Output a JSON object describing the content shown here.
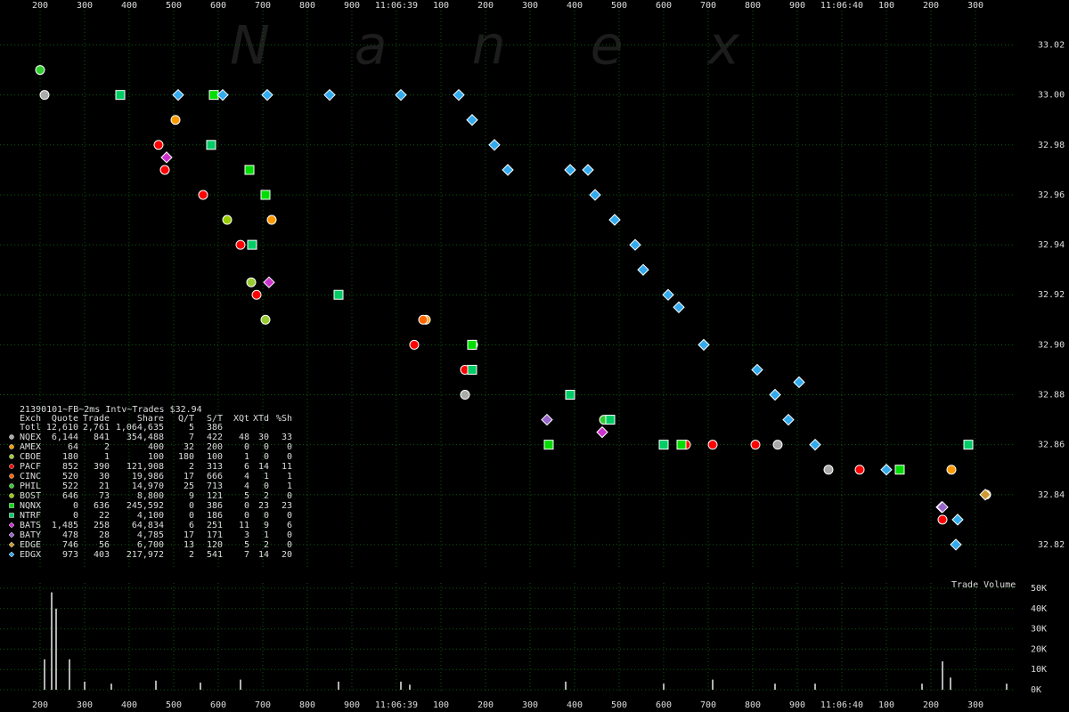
{
  "watermark": "Nanex",
  "table": {
    "title": "21390101~FB~2ms Intv~Trades $32.94",
    "columns": [
      "Exch",
      "Quote",
      "Trade",
      "Share",
      "Q/T",
      "S/T",
      "XQt",
      "XTd",
      "%Sh"
    ],
    "total": [
      "Totl",
      "12,610",
      "2,761",
      "1,064,635",
      "5",
      "386"
    ],
    "rows": [
      [
        "6,144",
        "841",
        "354,488",
        "7",
        "422",
        "48",
        "30",
        "33"
      ],
      [
        "64",
        "2",
        "400",
        "32",
        "200",
        "0",
        "0",
        "0"
      ],
      [
        "180",
        "1",
        "100",
        "180",
        "100",
        "1",
        "0",
        "0"
      ],
      [
        "852",
        "390",
        "121,908",
        "2",
        "313",
        "6",
        "14",
        "11"
      ],
      [
        "520",
        "30",
        "19,986",
        "17",
        "666",
        "4",
        "1",
        "1"
      ],
      [
        "522",
        "21",
        "14,970",
        "25",
        "713",
        "4",
        "0",
        "1"
      ],
      [
        "646",
        "73",
        "8,800",
        "9",
        "121",
        "5",
        "2",
        "0"
      ],
      [
        "0",
        "636",
        "245,592",
        "0",
        "386",
        "0",
        "23",
        "23"
      ],
      [
        "0",
        "22",
        "4,100",
        "0",
        "186",
        "0",
        "0",
        "0"
      ],
      [
        "1,485",
        "258",
        "64,834",
        "6",
        "251",
        "11",
        "9",
        "6"
      ],
      [
        "478",
        "28",
        "4,785",
        "17",
        "171",
        "3",
        "1",
        "0"
      ],
      [
        "746",
        "56",
        "6,700",
        "13",
        "120",
        "5",
        "2",
        "0"
      ],
      [
        "973",
        "403",
        "217,972",
        "2",
        "541",
        "7",
        "14",
        "20"
      ]
    ]
  },
  "chart_data": [
    {
      "type": "scatter",
      "grid": true,
      "xlim": [
        110,
        2510
      ],
      "ylim": [
        32.81,
        33.038
      ],
      "xticks": [
        200,
        300,
        400,
        500,
        600,
        700,
        800,
        900,
        {
          "value": 1000,
          "label": "11:06:39"
        },
        {
          "value": 1100,
          "label": "100"
        },
        {
          "value": 1200,
          "label": "200"
        },
        {
          "value": 1300,
          "label": "300"
        },
        {
          "value": 1400,
          "label": "400"
        },
        {
          "value": 1500,
          "label": "500"
        },
        {
          "value": 1600,
          "label": "600"
        },
        {
          "value": 1700,
          "label": "700"
        },
        {
          "value": 1800,
          "label": "800"
        },
        {
          "value": 1900,
          "label": "900"
        },
        {
          "value": 2000,
          "label": "11:06:40"
        },
        {
          "value": 2100,
          "label": "100"
        },
        {
          "value": 2200,
          "label": "200"
        },
        {
          "value": 2300,
          "label": "300"
        }
      ],
      "yticks": [
        33.02,
        {
          "value": 33,
          "label": "33.00"
        },
        32.98,
        32.96,
        32.94,
        32.92,
        {
          "value": 32.9,
          "label": "32.90"
        },
        32.88,
        32.86,
        32.84,
        32.82
      ],
      "series": [
        {
          "name": "NQEX",
          "color": "#aaaaaa",
          "shape": "circle",
          "x": [
            210,
            1154,
            1856,
            1970
          ],
          "values": [
            33.0,
            32.88,
            32.86,
            32.85
          ]
        },
        {
          "name": "AMEX",
          "color": "#ff9900",
          "shape": "circle",
          "x": [
            504,
            720,
            1066,
            2246,
            2324
          ],
          "values": [
            32.99,
            32.95,
            32.91,
            32.85,
            32.84
          ]
        },
        {
          "name": "CBOE",
          "color": "#99cc33",
          "shape": "circle",
          "x": [
            674,
            706
          ],
          "values": [
            32.925,
            32.91
          ]
        },
        {
          "name": "PACF",
          "color": "#ff0000",
          "shape": "circle",
          "x": [
            466,
            480,
            566,
            650,
            686,
            1040,
            1154,
            1650,
            1710,
            1806,
            2040,
            2226
          ],
          "values": [
            32.98,
            32.97,
            32.96,
            32.94,
            32.92,
            32.9,
            32.89,
            32.86,
            32.86,
            32.86,
            32.85,
            32.83
          ]
        },
        {
          "name": "CINC",
          "color": "#ff6600",
          "shape": "circle",
          "x": [
            1060
          ],
          "values": [
            32.91
          ]
        },
        {
          "name": "PHIL",
          "color": "#33cc33",
          "shape": "circle",
          "x": [
            200,
            1172,
            1466
          ],
          "values": [
            33.01,
            32.9,
            32.87
          ]
        },
        {
          "name": "BOST",
          "color": "#99cc00",
          "shape": "circle",
          "x": [
            620
          ],
          "values": [
            32.95
          ]
        },
        {
          "name": "NQNX",
          "color": "#00dd00",
          "shape": "square",
          "x": [
            590,
            670,
            706,
            1170,
            1342,
            1640,
            2130
          ],
          "values": [
            33.0,
            32.97,
            32.96,
            32.9,
            32.86,
            32.86,
            32.85
          ]
        },
        {
          "name": "NTRF",
          "color": "#00cc66",
          "shape": "square",
          "x": [
            380,
            584,
            676,
            870,
            1170,
            1390,
            1480,
            1600,
            2284
          ],
          "values": [
            33.0,
            32.98,
            32.94,
            32.92,
            32.89,
            32.88,
            32.87,
            32.86,
            32.86
          ]
        },
        {
          "name": "BATS",
          "color": "#cc33cc",
          "shape": "diamond",
          "x": [
            484,
            714,
            1462,
            2224
          ],
          "values": [
            32.975,
            32.925,
            32.865,
            32.835
          ]
        },
        {
          "name": "BATY",
          "color": "#9966cc",
          "shape": "diamond",
          "x": [
            1338,
            2226
          ],
          "values": [
            32.87,
            32.835
          ]
        },
        {
          "name": "EDGE",
          "color": "#cc9933",
          "shape": "diamond",
          "x": [
            2322
          ],
          "values": [
            32.84
          ]
        },
        {
          "name": "EDGX",
          "color": "#33aaee",
          "shape": "diamond",
          "x": [
            510,
            610,
            710,
            850,
            1010,
            1140,
            1170,
            1220,
            1250,
            1390,
            1430,
            1446,
            1490,
            1536,
            1554,
            1610,
            1634,
            1690,
            1810,
            1850,
            1880,
            1904,
            1940,
            2100,
            2256,
            2260
          ],
          "values": [
            33.0,
            33.0,
            33.0,
            33.0,
            33.0,
            33.0,
            32.99,
            32.98,
            32.97,
            32.97,
            32.97,
            32.96,
            32.95,
            32.94,
            32.93,
            32.92,
            32.915,
            32.9,
            32.89,
            32.88,
            32.87,
            32.885,
            32.86,
            32.85,
            32.82,
            32.83
          ]
        }
      ]
    },
    {
      "type": "bar",
      "title": "Trade Volume",
      "color": "#b0b0b0",
      "xlim": [
        110,
        2510
      ],
      "ylim": [
        0,
        50000
      ],
      "xticks": [
        200,
        300,
        400,
        500,
        600,
        700,
        800,
        900,
        {
          "value": 1000,
          "label": "11:06:39"
        },
        {
          "value": 1100,
          "label": "100"
        },
        {
          "value": 1200,
          "label": "200"
        },
        {
          "value": 1300,
          "label": "300"
        },
        {
          "value": 1400,
          "label": "400"
        },
        {
          "value": 1500,
          "label": "500"
        },
        {
          "value": 1600,
          "label": "600"
        },
        {
          "value": 1700,
          "label": "700"
        },
        {
          "value": 1800,
          "label": "800"
        },
        {
          "value": 1900,
          "label": "900"
        },
        {
          "value": 2000,
          "label": "11:06:40"
        },
        {
          "value": 2100,
          "label": "100"
        },
        {
          "value": 2200,
          "label": "200"
        },
        {
          "value": 2300,
          "label": "300"
        }
      ],
      "yticks": [
        {
          "value": 0,
          "label": "0K"
        },
        {
          "value": 10000,
          "label": "10K"
        },
        {
          "value": 20000,
          "label": "20K"
        },
        {
          "value": 30000,
          "label": "30K"
        },
        {
          "value": 40000,
          "label": "40K"
        },
        {
          "value": 50000,
          "label": "50K"
        }
      ],
      "x": [
        210,
        226,
        236,
        266,
        300,
        360,
        460,
        560,
        650,
        870,
        1010,
        1030,
        1380,
        1600,
        1710,
        1850,
        1940,
        2180,
        2226,
        2244,
        2370
      ],
      "values": [
        15000,
        48000,
        40000,
        15000,
        4000,
        3000,
        4500,
        3500,
        5000,
        4000,
        4000,
        2500,
        4000,
        3000,
        5000,
        3000,
        3000,
        3000,
        14000,
        6000,
        3000
      ]
    }
  ]
}
